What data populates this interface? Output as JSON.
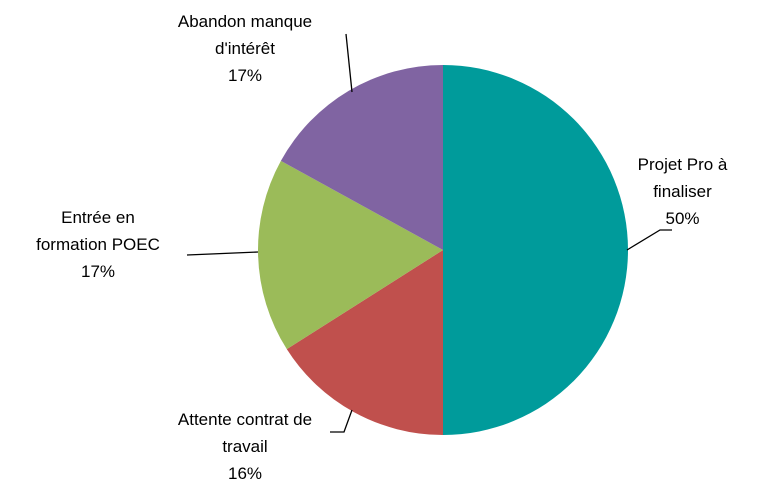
{
  "chart_data": {
    "type": "pie",
    "categories": [
      "Projet Pro à finaliser",
      "Attente contrat de travail",
      "Entrée en formation POEC",
      "Abandon manque d'intérêt"
    ],
    "values": [
      50,
      16,
      17,
      17
    ],
    "value_labels": [
      "50%",
      "16%",
      "17%",
      "17%"
    ],
    "colors": [
      "#009b9b",
      "#c0504d",
      "#9bbb59",
      "#8064a2"
    ]
  }
}
